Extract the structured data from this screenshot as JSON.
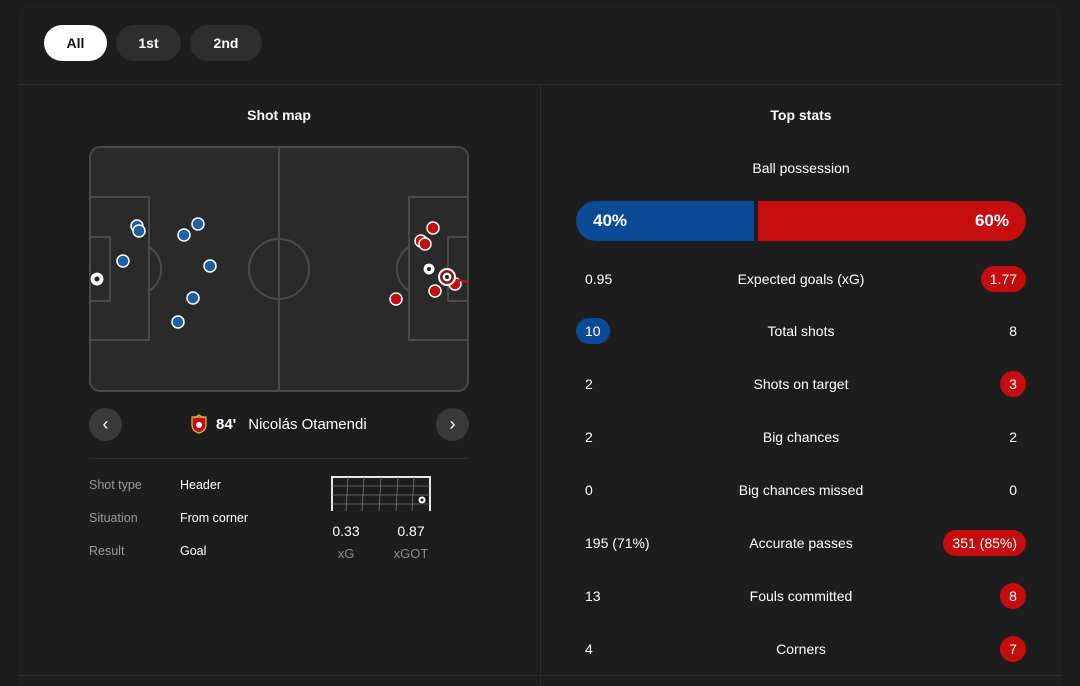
{
  "tabs": [
    {
      "label": "All",
      "active": true
    },
    {
      "label": "1st",
      "active": false
    },
    {
      "label": "2nd",
      "active": false
    }
  ],
  "shot_map": {
    "title": "Shot map",
    "home_color": "#1f5fa3",
    "away_color": "#c50d0d",
    "selected_shot": {
      "minute": "84'",
      "player": "Nicolás Otamendi",
      "details": [
        {
          "label": "Shot type",
          "value": "Header"
        },
        {
          "label": "Situation",
          "value": "From corner"
        },
        {
          "label": "Result",
          "value": "Goal"
        }
      ],
      "xg": "0.33",
      "xg_label": "xG",
      "xgot": "0.87",
      "xgot_label": "xGOT"
    }
  },
  "top_stats": {
    "title": "Top stats",
    "possession": {
      "label": "Ball possession",
      "home": "40%",
      "away": "60%",
      "home_value": 40,
      "away_value": 60
    },
    "rows": [
      {
        "label": "Expected goals (xG)",
        "home": "0.95",
        "away": "1.77",
        "highlight": "away"
      },
      {
        "label": "Total shots",
        "home": "10",
        "away": "8",
        "highlight": "home"
      },
      {
        "label": "Shots on target",
        "home": "2",
        "away": "3",
        "highlight": "away"
      },
      {
        "label": "Big chances",
        "home": "2",
        "away": "2",
        "highlight": "none"
      },
      {
        "label": "Big chances missed",
        "home": "0",
        "away": "0",
        "highlight": "none"
      },
      {
        "label": "Accurate passes",
        "home": "195 (71%)",
        "away": "351 (85%)",
        "highlight": "away"
      },
      {
        "label": "Fouls committed",
        "home": "13",
        "away": "8",
        "highlight": "away"
      },
      {
        "label": "Corners",
        "home": "4",
        "away": "7",
        "highlight": "away"
      }
    ]
  },
  "colors": {
    "home": "#0c4a96",
    "away": "#c50d0d",
    "background": "#1d1d1d"
  }
}
